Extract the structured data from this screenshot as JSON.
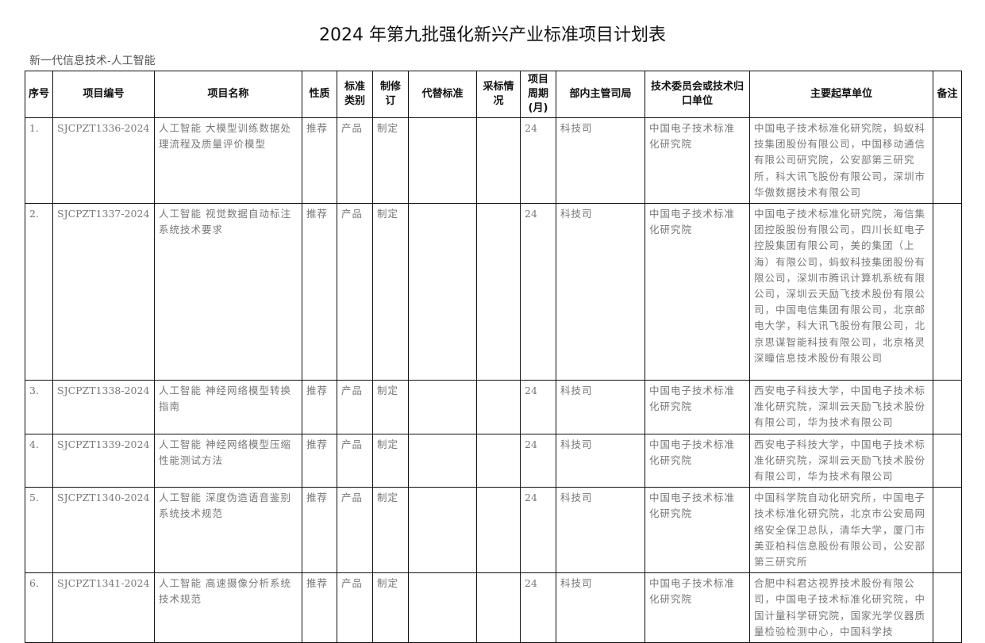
{
  "title": "2024 年第九批强化新兴产业标准项目计划表",
  "section": "新一代信息技术-人工智能",
  "headers": [
    "序号",
    "项目编号",
    "项目名称",
    "性质",
    "标准类别",
    "制修订",
    "代替标准",
    "采标情况",
    "项目周期(月)",
    "部内主管司局",
    "技术委员会或技术归口单位",
    "主要起草单位",
    "备注"
  ],
  "rows": [
    {
      "no": "1.",
      "code": "SJCPZT1336-2024",
      "name": "人工智能 大模型训练数据处理流程及质量评价模型",
      "nature": "推荐",
      "category": "产品",
      "revision": "制定",
      "replace": "",
      "adopt": "",
      "period": "24",
      "dept": "科技司",
      "tc": "中国电子技术标准化研究院",
      "drafters": "中国电子技术标准化研究院，蚂蚁科技集团股份有限公司，中国移动通信有限公司研究院，公安部第三研究所，科大讯飞股份有限公司，深圳市华傲数据技术有限公司",
      "note": ""
    },
    {
      "no": "2.",
      "code": "SJCPZT1337-2024",
      "name": "人工智能 视觉数据自动标注系统技术要求",
      "nature": "推荐",
      "category": "产品",
      "revision": "制定",
      "replace": "",
      "adopt": "",
      "period": "24",
      "dept": "科技司",
      "tc": "中国电子技术标准化研究院",
      "drafters": "中国电子技术标准化研究院，海信集团控股股份有限公司，四川长虹电子控股集团有限公司，美的集团（上海）有限公司，蚂蚁科技集团股份有限公司，深圳市腾讯计算机系统有限公司，深圳云天励飞技术股份有限公司，中国电信集团有限公司，北京邮电大学，科大讯飞股份有限公司，北京思谋智能科技有限公司，北京格灵深瞳信息技术股份有限公司",
      "note": ""
    },
    {
      "no": "3.",
      "code": "SJCPZT1338-2024",
      "name": "人工智能 神经网络模型转换指南",
      "nature": "推荐",
      "category": "产品",
      "revision": "制定",
      "replace": "",
      "adopt": "",
      "period": "24",
      "dept": "科技司",
      "tc": "中国电子技术标准化研究院",
      "drafters": "西安电子科技大学，中国电子技术标准化研究院，深圳云天励飞技术股份有限公司，华为技术有限公司",
      "note": ""
    },
    {
      "no": "4.",
      "code": "SJCPZT1339-2024",
      "name": "人工智能 神经网络模型压缩性能测试方法",
      "nature": "推荐",
      "category": "产品",
      "revision": "制定",
      "replace": "",
      "adopt": "",
      "period": "24",
      "dept": "科技司",
      "tc": "中国电子技术标准化研究院",
      "drafters": "西安电子科技大学，中国电子技术标准化研究院，深圳云天励飞技术股份有限公司，华为技术有限公司",
      "note": ""
    },
    {
      "no": "5.",
      "code": "SJCPZT1340-2024",
      "name": "人工智能 深度伪造语音鉴别系统技术规范",
      "nature": "推荐",
      "category": "产品",
      "revision": "制定",
      "replace": "",
      "adopt": "",
      "period": "24",
      "dept": "科技司",
      "tc": "中国电子技术标准化研究院",
      "drafters": "中国科学院自动化研究所，中国电子技术标准化研究院，北京市公安局网络安全保卫总队，清华大学，厦门市美亚柏科信息股份有限公司，公安部第三研究所",
      "note": ""
    },
    {
      "no": "6.",
      "code": "SJCPZT1341-2024",
      "name": "人工智能 高速摄像分析系统技术规范",
      "nature": "推荐",
      "category": "产品",
      "revision": "制定",
      "replace": "",
      "adopt": "",
      "period": "24",
      "dept": "科技司",
      "tc": "中国电子技术标准化研究院",
      "drafters": "合肥中科君达视界技术股份有限公司，中国电子技术标准化研究院，中国计量科学研究院，国家光学仪器质量检验检测中心，中国科学技",
      "note": ""
    }
  ]
}
